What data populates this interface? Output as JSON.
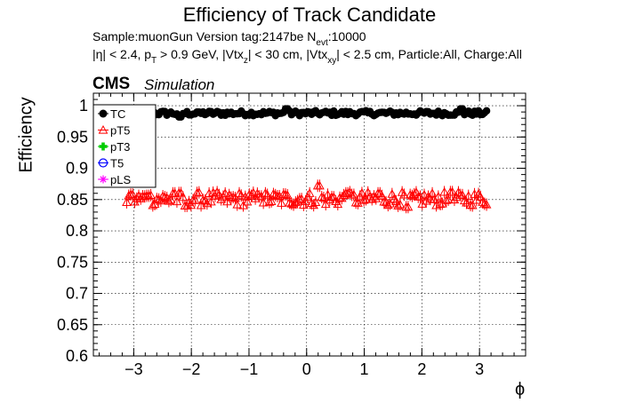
{
  "chart_data": {
    "type": "scatter",
    "title": "Efficiency of Track Candidate",
    "info_line1": "Sample:muonGun   Version tag:2147be  N_evt:10000",
    "info_line2": "|η| < 2.4, p_T > 0.9 GeV, |Vtx_z| < 30 cm, |Vtx_xy| < 2.5 cm, Particle:All, Charge:All",
    "cms_label": "CMS",
    "simulation_label": "Simulation",
    "xlabel": "ϕ",
    "ylabel": "Efficiency",
    "xlim": [
      -3.7,
      3.8
    ],
    "ylim": [
      0.6,
      1.02
    ],
    "xticks": [
      -3,
      -2,
      -1,
      0,
      1,
      2,
      3
    ],
    "xtick_labels": [
      "−3",
      "−2",
      "−1",
      "0",
      "1",
      "2",
      "3"
    ],
    "yticks": [
      0.6,
      0.65,
      0.7,
      0.75,
      0.8,
      0.85,
      0.9,
      0.95,
      1
    ],
    "ytick_labels": [
      "0.6",
      "0.65",
      "0.7",
      "0.75",
      "0.8",
      "0.85",
      "0.9",
      "0.95",
      "1"
    ],
    "grid": true,
    "legend_position": "top-left",
    "x_range": [
      -3.14,
      3.14
    ],
    "n_bins": 180,
    "series": [
      {
        "name": "TC",
        "marker": "circle-filled",
        "color": "#000000",
        "mean": 0.988,
        "spread": 0.004,
        "points": [
          [
            -2.2,
            0.982
          ],
          [
            -1.9,
            0.99
          ],
          [
            -0.35,
            0.995
          ],
          [
            2.7,
            0.995
          ]
        ]
      },
      {
        "name": "pT5",
        "marker": "triangle-open",
        "color": "#ff0000",
        "mean": 0.851,
        "spread": 0.011,
        "points": [
          [
            -3.05,
            0.858
          ],
          [
            -2.75,
            0.856
          ],
          [
            -2.3,
            0.86
          ],
          [
            -2.1,
            0.84
          ],
          [
            -0.8,
            0.855
          ],
          [
            0.2,
            0.872
          ],
          [
            0.7,
            0.86
          ],
          [
            1.25,
            0.86
          ],
          [
            1.75,
            0.838
          ],
          [
            2.5,
            0.862
          ]
        ]
      },
      {
        "name": "pT3",
        "marker": "cross-filled",
        "color": "#00cc00",
        "values": []
      },
      {
        "name": "T5",
        "marker": "circle-open",
        "color": "#0000ff",
        "values": []
      },
      {
        "name": "pLS",
        "marker": "star",
        "color": "#ff00ff",
        "values": []
      }
    ]
  }
}
